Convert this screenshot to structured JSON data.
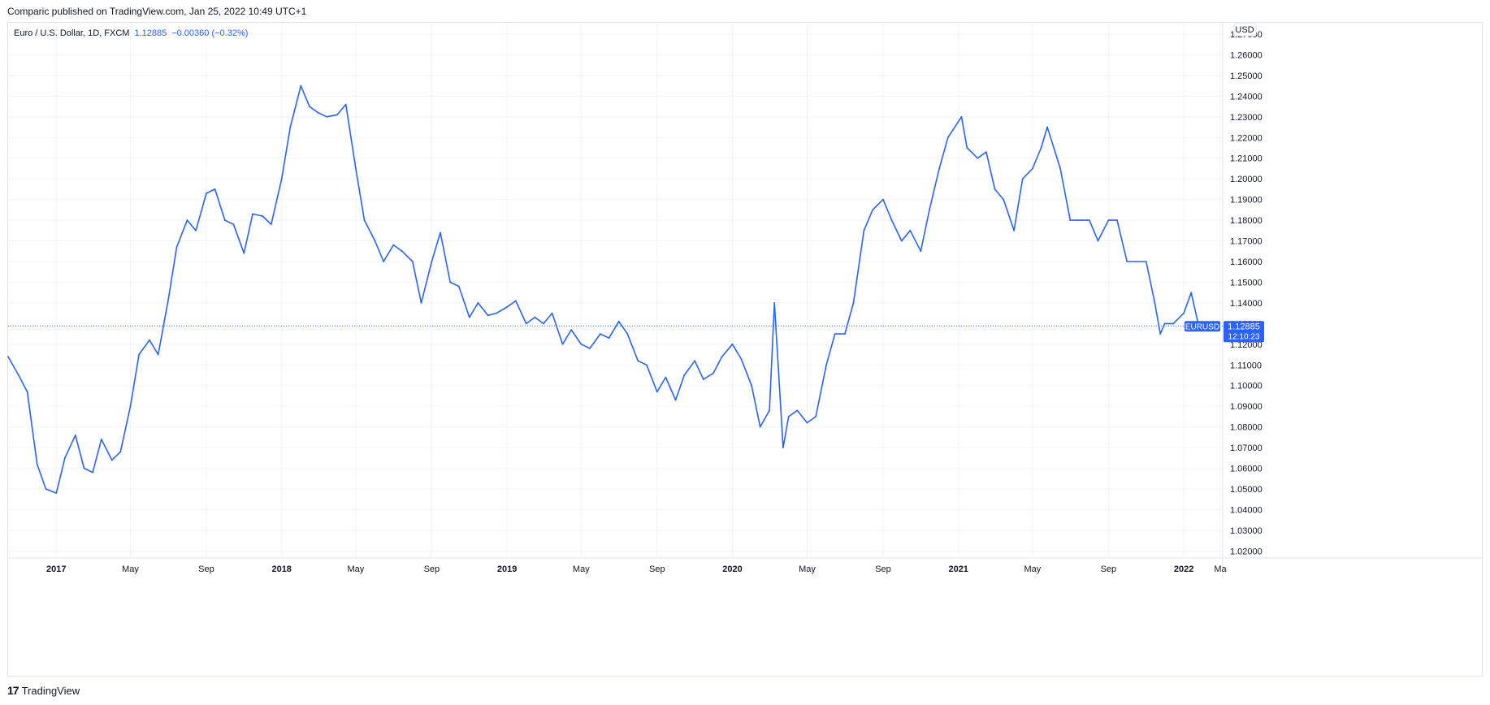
{
  "published_line": "Comparic published on TradingView.com, Jan 25, 2022 10:49 UTC+1",
  "legend": {
    "symbol": "Euro / U.S. Dollar, 1D, FXCM",
    "last": "1.12885",
    "change": "−0.00360 (−0.32%)"
  },
  "currency_label": "USD",
  "price_tag": {
    "ticker": "EURUSD",
    "price": "1.12885",
    "countdown": "12:10:23"
  },
  "footer_brand": "TradingView",
  "footer_logo": "17",
  "colors": {
    "line": "#2962ff",
    "grid": "#f0f3fa",
    "axis_text": "#131722"
  },
  "chart_data": {
    "type": "line",
    "series": [
      {
        "name": "EURUSD",
        "x": [
          "2016-10-15",
          "2016-11-01",
          "2016-11-15",
          "2016-12-01",
          "2016-12-15",
          "2017-01-01",
          "2017-01-15",
          "2017-02-01",
          "2017-02-15",
          "2017-03-01",
          "2017-03-15",
          "2017-04-01",
          "2017-04-15",
          "2017-05-01",
          "2017-05-15",
          "2017-06-01",
          "2017-06-15",
          "2017-07-01",
          "2017-07-15",
          "2017-08-01",
          "2017-08-15",
          "2017-09-01",
          "2017-09-15",
          "2017-10-01",
          "2017-10-15",
          "2017-11-01",
          "2017-11-15",
          "2017-12-01",
          "2017-12-15",
          "2018-01-01",
          "2018-01-15",
          "2018-02-01",
          "2018-02-15",
          "2018-03-01",
          "2018-03-15",
          "2018-04-01",
          "2018-04-15",
          "2018-05-01",
          "2018-05-15",
          "2018-06-01",
          "2018-06-15",
          "2018-07-01",
          "2018-07-15",
          "2018-08-01",
          "2018-08-15",
          "2018-09-01",
          "2018-09-15",
          "2018-10-01",
          "2018-10-15",
          "2018-11-01",
          "2018-11-15",
          "2018-12-01",
          "2018-12-15",
          "2019-01-01",
          "2019-01-15",
          "2019-02-01",
          "2019-02-15",
          "2019-03-01",
          "2019-03-15",
          "2019-04-01",
          "2019-04-15",
          "2019-05-01",
          "2019-05-15",
          "2019-06-01",
          "2019-06-15",
          "2019-07-01",
          "2019-07-15",
          "2019-08-01",
          "2019-08-15",
          "2019-09-01",
          "2019-09-15",
          "2019-10-01",
          "2019-10-15",
          "2019-11-01",
          "2019-11-15",
          "2019-12-01",
          "2019-12-15",
          "2020-01-01",
          "2020-01-15",
          "2020-02-01",
          "2020-02-15",
          "2020-03-01",
          "2020-03-09",
          "2020-03-15",
          "2020-03-23",
          "2020-04-01",
          "2020-04-15",
          "2020-05-01",
          "2020-05-15",
          "2020-06-01",
          "2020-06-15",
          "2020-07-01",
          "2020-07-15",
          "2020-08-01",
          "2020-08-15",
          "2020-09-01",
          "2020-09-15",
          "2020-10-01",
          "2020-10-15",
          "2020-11-01",
          "2020-11-15",
          "2020-12-01",
          "2020-12-15",
          "2021-01-06",
          "2021-01-15",
          "2021-02-01",
          "2021-02-15",
          "2021-03-01",
          "2021-03-15",
          "2021-04-01",
          "2021-04-15",
          "2021-05-01",
          "2021-05-15",
          "2021-05-25",
          "2021-06-15",
          "2021-07-01",
          "2021-07-15",
          "2021-08-01",
          "2021-08-15",
          "2021-09-01",
          "2021-09-15",
          "2021-10-01",
          "2021-10-15",
          "2021-11-01",
          "2021-11-15",
          "2021-11-24",
          "2021-12-01",
          "2021-12-15",
          "2022-01-01",
          "2022-01-13",
          "2022-01-25"
        ],
        "y": [
          1.114,
          1.105,
          1.097,
          1.062,
          1.05,
          1.048,
          1.065,
          1.076,
          1.06,
          1.058,
          1.074,
          1.064,
          1.068,
          1.09,
          1.115,
          1.122,
          1.115,
          1.141,
          1.167,
          1.18,
          1.175,
          1.193,
          1.195,
          1.18,
          1.178,
          1.164,
          1.183,
          1.182,
          1.178,
          1.2,
          1.225,
          1.245,
          1.235,
          1.232,
          1.23,
          1.231,
          1.236,
          1.205,
          1.18,
          1.17,
          1.16,
          1.168,
          1.165,
          1.16,
          1.14,
          1.16,
          1.174,
          1.15,
          1.148,
          1.133,
          1.14,
          1.134,
          1.135,
          1.138,
          1.141,
          1.13,
          1.133,
          1.13,
          1.135,
          1.12,
          1.127,
          1.12,
          1.118,
          1.125,
          1.123,
          1.131,
          1.125,
          1.112,
          1.11,
          1.097,
          1.104,
          1.093,
          1.105,
          1.112,
          1.103,
          1.106,
          1.114,
          1.12,
          1.113,
          1.1,
          1.08,
          1.088,
          1.14,
          1.11,
          1.07,
          1.085,
          1.088,
          1.082,
          1.085,
          1.11,
          1.125,
          1.125,
          1.14,
          1.175,
          1.185,
          1.19,
          1.18,
          1.17,
          1.175,
          1.165,
          1.185,
          1.205,
          1.22,
          1.23,
          1.215,
          1.21,
          1.213,
          1.195,
          1.19,
          1.175,
          1.2,
          1.205,
          1.215,
          1.225,
          1.205,
          1.18,
          1.18,
          1.18,
          1.17,
          1.18,
          1.18,
          1.16,
          1.16,
          1.16,
          1.14,
          1.125,
          1.13,
          1.13,
          1.135,
          1.145,
          1.1289
        ]
      }
    ],
    "x_ticks": [
      {
        "date": "2017-01-01",
        "label": "2017",
        "major": true
      },
      {
        "date": "2017-05-01",
        "label": "May",
        "major": false
      },
      {
        "date": "2017-09-01",
        "label": "Sep",
        "major": false
      },
      {
        "date": "2018-01-01",
        "label": "2018",
        "major": true
      },
      {
        "date": "2018-05-01",
        "label": "May",
        "major": false
      },
      {
        "date": "2018-09-01",
        "label": "Sep",
        "major": false
      },
      {
        "date": "2019-01-01",
        "label": "2019",
        "major": true
      },
      {
        "date": "2019-05-01",
        "label": "May",
        "major": false
      },
      {
        "date": "2019-09-01",
        "label": "Sep",
        "major": false
      },
      {
        "date": "2020-01-01",
        "label": "2020",
        "major": true
      },
      {
        "date": "2020-05-01",
        "label": "May",
        "major": false
      },
      {
        "date": "2020-09-01",
        "label": "Sep",
        "major": false
      },
      {
        "date": "2021-01-01",
        "label": "2021",
        "major": true
      },
      {
        "date": "2021-05-01",
        "label": "May",
        "major": false
      },
      {
        "date": "2021-09-01",
        "label": "Sep",
        "major": false
      },
      {
        "date": "2022-01-01",
        "label": "2022",
        "major": true
      },
      {
        "date": "2022-03-01",
        "label": "Ma",
        "major": false
      }
    ],
    "y_ticks": [
      "1.02000",
      "1.03000",
      "1.04000",
      "1.05000",
      "1.06000",
      "1.07000",
      "1.08000",
      "1.09000",
      "1.10000",
      "1.11000",
      "1.12000",
      "1.13000",
      "1.14000",
      "1.15000",
      "1.16000",
      "1.17000",
      "1.18000",
      "1.19000",
      "1.20000",
      "1.21000",
      "1.22000",
      "1.23000",
      "1.24000",
      "1.25000",
      "1.26000",
      "1.27000"
    ],
    "xlim": [
      "2016-10-15",
      "2022-03-05"
    ],
    "ylim": [
      1.017,
      1.2755
    ],
    "last_value": 1.12885,
    "grid": true,
    "legend_position": "top-left"
  }
}
